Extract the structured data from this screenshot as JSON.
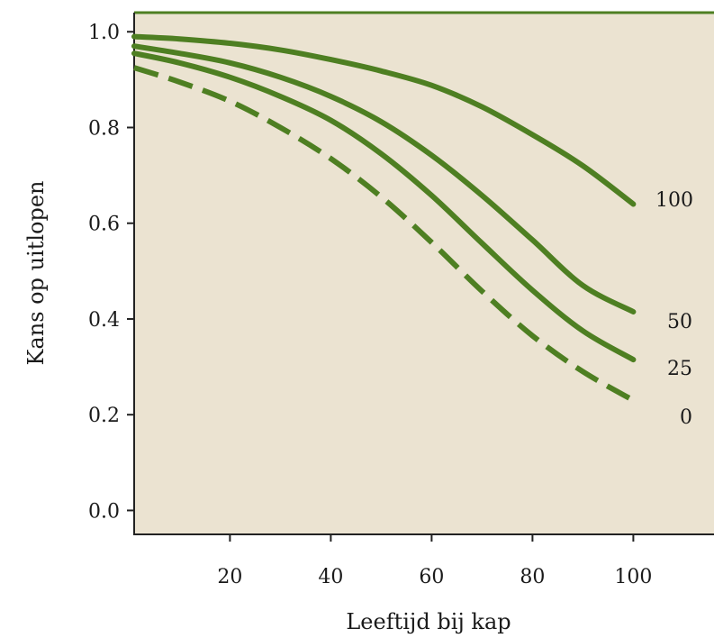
{
  "chart_data": {
    "type": "line",
    "xlabel": "Leeftijd bij kap",
    "ylabel": "Kans op uitlopen",
    "xlim": [
      1,
      116
    ],
    "ylim": [
      -0.05,
      1.04
    ],
    "xticks": [
      20,
      40,
      60,
      80,
      100
    ],
    "yticks": [
      0.0,
      0.2,
      0.4,
      0.6,
      0.8,
      1.0
    ],
    "ytick_labels": [
      "0.0",
      "0.2",
      "0.4",
      "0.6",
      "0.8",
      "1.0"
    ],
    "grid": false,
    "legend": "inline labels at line ends",
    "colors": {
      "plot_bg": "#ebe3d1",
      "line": "#4e7f22",
      "axis": "#222222",
      "top_border": "#4e7f22"
    },
    "series": [
      {
        "name": "100",
        "style": "solid",
        "x": [
          1,
          10,
          20,
          30,
          40,
          50,
          60,
          70,
          80,
          90,
          100
        ],
        "y": [
          0.99,
          0.985,
          0.976,
          0.962,
          0.942,
          0.918,
          0.888,
          0.843,
          0.785,
          0.72,
          0.64
        ]
      },
      {
        "name": "50",
        "style": "solid",
        "x": [
          1,
          10,
          20,
          30,
          40,
          50,
          60,
          70,
          80,
          90,
          100
        ],
        "y": [
          0.97,
          0.955,
          0.935,
          0.905,
          0.865,
          0.812,
          0.742,
          0.658,
          0.565,
          0.47,
          0.415
        ]
      },
      {
        "name": "25",
        "style": "solid",
        "x": [
          1,
          10,
          20,
          30,
          40,
          50,
          60,
          70,
          80,
          90,
          100
        ],
        "y": [
          0.955,
          0.935,
          0.905,
          0.865,
          0.815,
          0.745,
          0.658,
          0.558,
          0.46,
          0.375,
          0.315
        ]
      },
      {
        "name": "0",
        "style": "dashed",
        "x": [
          1,
          10,
          20,
          30,
          40,
          50,
          60,
          70,
          80,
          90,
          100
        ],
        "y": [
          0.925,
          0.895,
          0.855,
          0.8,
          0.735,
          0.655,
          0.56,
          0.458,
          0.365,
          0.29,
          0.23
        ]
      }
    ]
  }
}
